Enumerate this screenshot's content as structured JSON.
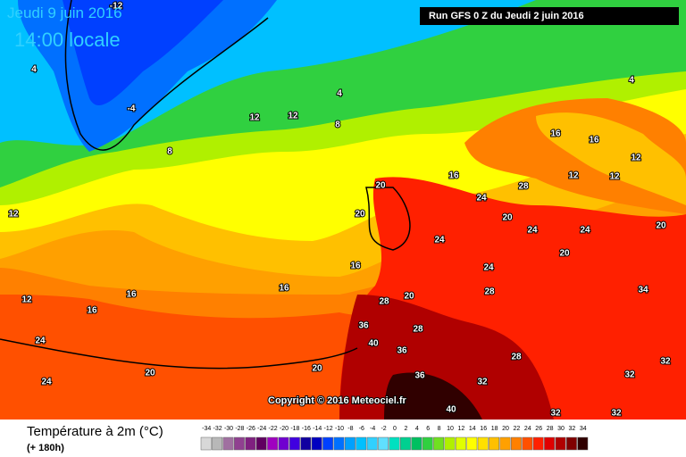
{
  "header": {
    "date": "Jeudi 9 juin 2016",
    "time": "14:00 locale",
    "run": "Run GFS 0 Z du Jeudi 2 juin 2016"
  },
  "map": {
    "isoline_labels": [
      -12,
      4,
      -4,
      8,
      4,
      8,
      12,
      12,
      12,
      12,
      16,
      16,
      16,
      16,
      16,
      24,
      24,
      20,
      20,
      20,
      20,
      20,
      24,
      24,
      28,
      20,
      24,
      24,
      20,
      16,
      16,
      12,
      12,
      12,
      4,
      28,
      28,
      36,
      40,
      36,
      36,
      40,
      32,
      28,
      32,
      32,
      32,
      32,
      28,
      34,
      20,
      24
    ]
  },
  "copyright": "Copyright © 2016 Meteociel.fr",
  "legend": {
    "title": "Température à 2m (°C)",
    "lead": "(+ 180h)",
    "ticks": [
      -34,
      -32,
      -30,
      -28,
      -26,
      -24,
      -22,
      -20,
      -18,
      -16,
      -14,
      -12,
      -10,
      -8,
      -6,
      -4,
      -2,
      0,
      2,
      4,
      6,
      8,
      10,
      12,
      14,
      16,
      18,
      20,
      22,
      24,
      26,
      28,
      30,
      32,
      34
    ],
    "colors": [
      "#d8d8d8",
      "#b8b8b8",
      "#a070a0",
      "#904090",
      "#802080",
      "#600060",
      "#a000c0",
      "#7000d0",
      "#4000e0",
      "#1000a0",
      "#0000c0",
      "#0040ff",
      "#0070ff",
      "#00a0ff",
      "#00c0ff",
      "#30d0ff",
      "#60e0ff",
      "#00e0c0",
      "#00d090",
      "#00c060",
      "#30d040",
      "#70e020",
      "#b0f000",
      "#e0ff00",
      "#ffff00",
      "#ffe000",
      "#ffc000",
      "#ffa000",
      "#ff8000",
      "#ff5000",
      "#ff2000",
      "#e00000",
      "#b00000",
      "#800000",
      "#300000"
    ]
  }
}
